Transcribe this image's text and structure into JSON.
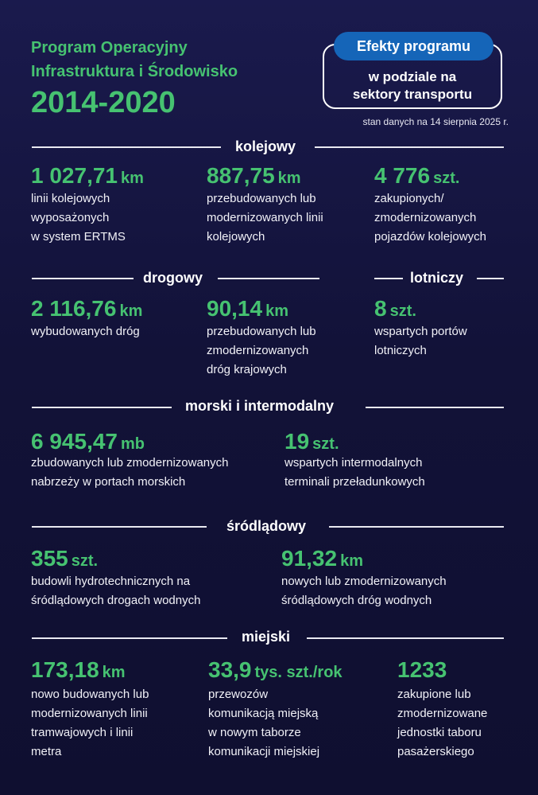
{
  "header": {
    "title_line1": "Program Operacyjny",
    "title_line2": "Infrastruktura i Środowisko",
    "years": "2014-2020",
    "badge_title": "Efekty programu",
    "badge_sub_line1": "w podziale na",
    "badge_sub_line2": "sektory transportu",
    "status": "stan danych na 14 sierpnia 2025 r."
  },
  "sections": {
    "kolejowy": "kolejowy",
    "drogowy": "drogowy",
    "lotniczy": "lotniczy",
    "morski": "morski i intermodalny",
    "srodladowy": "śródlądowy",
    "miejski": "miejski"
  },
  "metrics": {
    "rail1": {
      "value": "1 027,71",
      "unit": "km",
      "desc": "linii kolejowych\nwyposażonych\nw system ERTMS"
    },
    "rail2": {
      "value": "887,75",
      "unit": "km",
      "desc": "przebudowanych lub\nmodernizowanych linii\nkolejowych"
    },
    "rail3": {
      "value": "4 776",
      "unit": "szt.",
      "desc": "zakupionych/\nzmodernizowanych\npojazdów kolejowych"
    },
    "road1": {
      "value": "2 116,76",
      "unit": "km",
      "desc": "wybudowanych dróg"
    },
    "road2": {
      "value": "90,14",
      "unit": "km",
      "desc": "przebudowanych lub\nzmodernizowanych\ndróg krajowych"
    },
    "air1": {
      "value": "8",
      "unit": "szt.",
      "desc": "wspartych portów\nlotniczych"
    },
    "sea1": {
      "value": "6 945,47",
      "unit": "mb",
      "desc": "zbudowanych lub zmodernizowanych\nnabrzeży w portach morskich"
    },
    "sea2": {
      "value": "19",
      "unit": "szt.",
      "desc": "wspartych intermodalnych\nterminali przeładunkowych"
    },
    "inland1": {
      "value": "355",
      "unit": "szt.",
      "desc": "budowli hydrotechnicznych na\nśródlądowych drogach wodnych"
    },
    "inland2": {
      "value": "91,32",
      "unit": "km",
      "desc": "nowych lub zmodernizowanych\nśródlądowych dróg wodnych"
    },
    "urban1": {
      "value": "173,18",
      "unit": "km",
      "desc": "nowo budowanych lub\nmodernizowanych linii\ntramwajowych i linii\nmetra"
    },
    "urban2": {
      "value": "33,9",
      "unit": "tys. szt./rok",
      "desc": "przewozów\nkomunikacją miejską\nw nowym taborze\nkomunikacji miejskiej"
    },
    "urban3": {
      "value": "1233",
      "unit": "",
      "desc": "zakupione lub\nzmodernizowane\njednostki taboru\npasażerskiego"
    }
  },
  "colors": {
    "accent_green": "#46c271",
    "badge_blue": "#1565b8",
    "background": "#15153f"
  }
}
